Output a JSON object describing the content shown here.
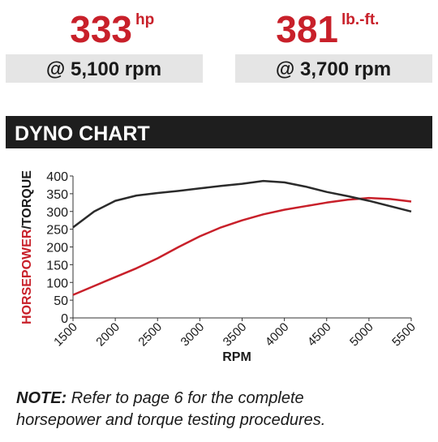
{
  "stats": [
    {
      "number": "333",
      "unit": "hp",
      "rpm": "@ 5,100 rpm"
    },
    {
      "number": "381",
      "unit": "lb.-ft.",
      "rpm": "@ 3,700 rpm"
    }
  ],
  "section_title": "DYNO CHART",
  "chart_data": {
    "type": "line",
    "x": [
      1500,
      1750,
      2000,
      2250,
      2500,
      2750,
      3000,
      3250,
      3500,
      3750,
      4000,
      4250,
      4500,
      4750,
      5000,
      5250,
      5500
    ],
    "series": [
      {
        "color": "#c8202a",
        "values": [
          65,
          90,
          115,
          140,
          168,
          200,
          230,
          255,
          275,
          292,
          305,
          315,
          325,
          333,
          338,
          335,
          328
        ]
      },
      {
        "color": "#2b2b2b",
        "values": [
          255,
          300,
          330,
          345,
          352,
          358,
          365,
          372,
          378,
          386,
          382,
          370,
          355,
          343,
          330,
          315,
          300
        ]
      }
    ],
    "xlabel": "RPM",
    "ylabel": [
      "HORSEPOWER",
      "/TORQUE"
    ],
    "xlim": [
      1500,
      5500
    ],
    "xticks": [
      1500,
      2000,
      2500,
      3000,
      3500,
      4000,
      4500,
      5000,
      5500
    ],
    "ylim": [
      0,
      400
    ],
    "yticks": [
      0,
      50,
      100,
      150,
      200,
      250,
      300,
      350,
      400
    ],
    "grid": false
  },
  "note": {
    "label": "NOTE:",
    "text": [
      "Refer to page 6 for the complete",
      "horsepower and torque testing procedures."
    ]
  }
}
